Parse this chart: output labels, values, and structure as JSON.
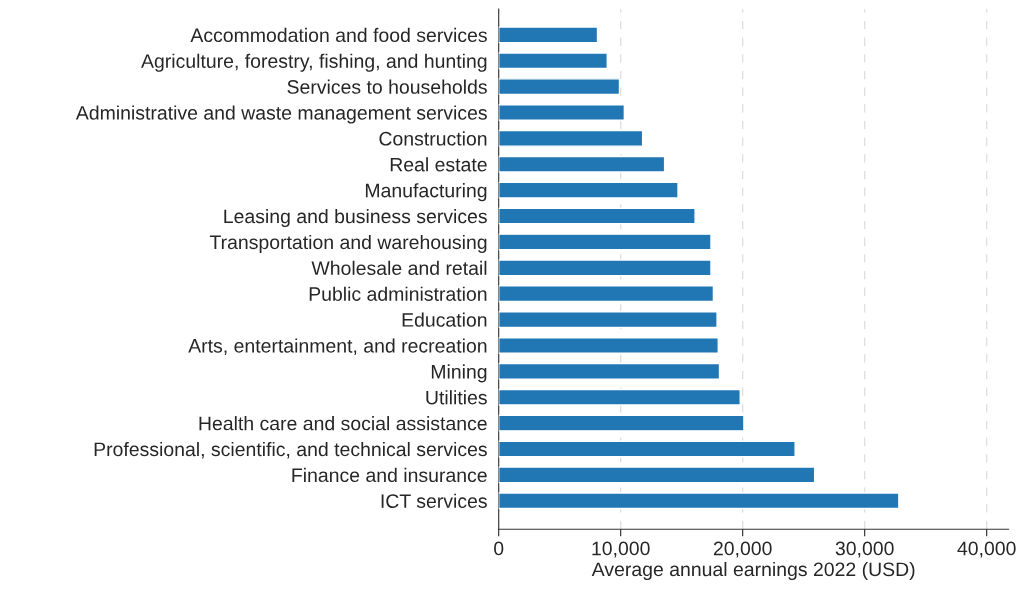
{
  "chart_data": {
    "type": "bar",
    "orientation": "horizontal",
    "xlabel": "Average annual earnings 2022 (USD)",
    "categories": [
      "Accommodation and food services",
      "Agriculture, forestry, fishing, and hunting",
      "Services to households",
      "Administrative and waste management services",
      "Construction",
      "Real estate",
      "Manufacturing",
      "Leasing and business services",
      "Transportation and warehousing",
      "Wholesale and retail",
      "Public administration",
      "Education",
      "Arts, entertainment, and recreation",
      "Mining",
      "Utilities",
      "Health care and social assistance",
      "Professional, scientific, and technical services",
      "Finance and insurance",
      "ICT services"
    ],
    "values": [
      8100,
      8900,
      9900,
      10300,
      11800,
      13600,
      14700,
      16100,
      17400,
      17400,
      17600,
      17900,
      18000,
      18100,
      19800,
      20100,
      24300,
      25900,
      32800
    ],
    "color": "#2077b4",
    "xlim": [
      0,
      41800
    ],
    "xticks": [
      {
        "value": 0,
        "label": "0"
      },
      {
        "value": 10000,
        "label": "10,000"
      },
      {
        "value": 20000,
        "label": "20,000"
      },
      {
        "value": 30000,
        "label": "30,000"
      },
      {
        "value": 40000,
        "label": "40,000"
      }
    ],
    "grid": "x"
  }
}
